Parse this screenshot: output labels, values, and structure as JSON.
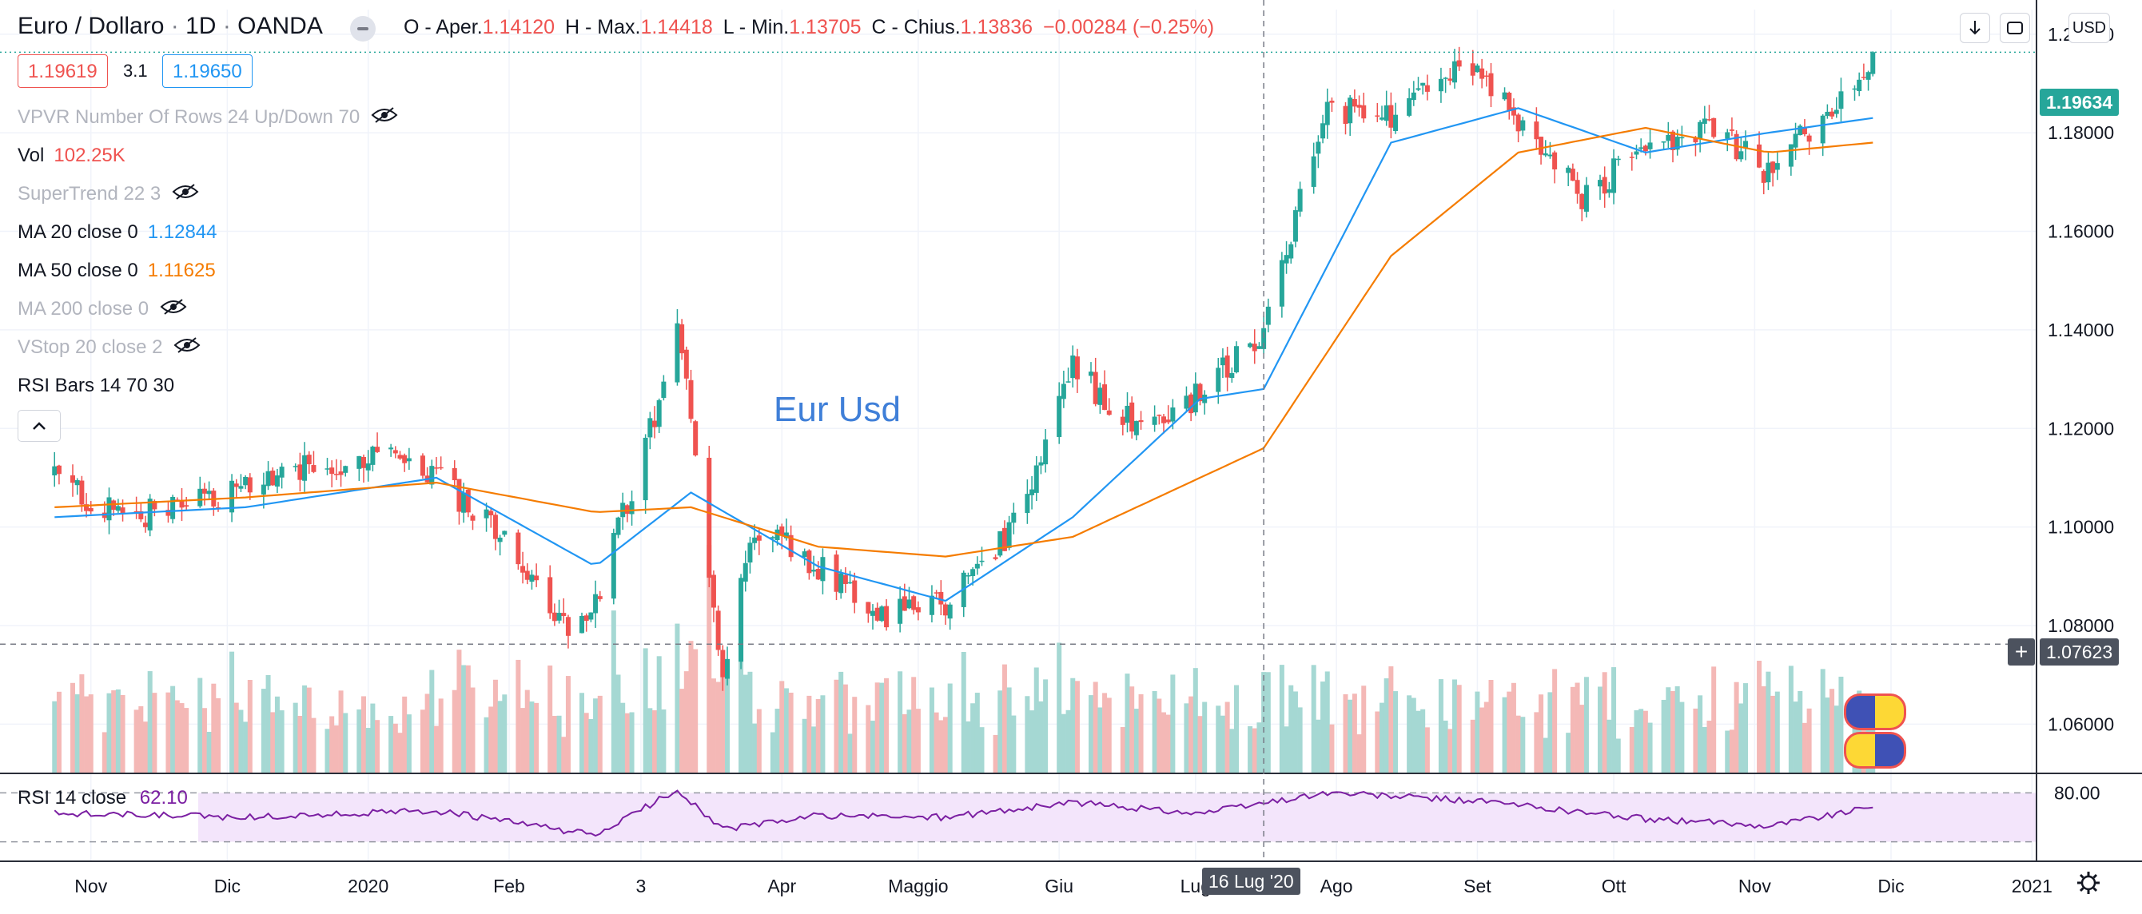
{
  "header": {
    "symbol": "Euro / Dollaro",
    "sep1": "·",
    "interval": "1D",
    "sep2": "·",
    "exchange": "OANDA",
    "ohlc": {
      "o_label": "O - Aper.",
      "o": "1.14120",
      "h_label": "H - Max.",
      "h": "1.14418",
      "l_label": "L - Min.",
      "l": "1.13705",
      "c_label": "C - Chius.",
      "c": "1.13836",
      "change": "−0.00284 (−0.25%)"
    },
    "bid": "1.19619",
    "spread": "3.1",
    "ask": "1.19650",
    "currency": "USD"
  },
  "indicators": [
    {
      "name": "VPVR Number Of Rows 24 Up/Down 70",
      "value": "",
      "hidden": true
    },
    {
      "name": "Vol",
      "value": "102.25K",
      "hidden": false,
      "color": "#ef5350"
    },
    {
      "name": "SuperTrend 22 3",
      "value": "",
      "hidden": true
    },
    {
      "name": "MA 20 close 0",
      "value": "1.12844",
      "hidden": false,
      "color": "#2196f3"
    },
    {
      "name": "MA 50 close 0",
      "value": "1.11625",
      "hidden": false,
      "color": "#f57c00"
    },
    {
      "name": "MA 200 close 0",
      "value": "",
      "hidden": true
    },
    {
      "name": "VStop 20 close 2",
      "value": "",
      "hidden": true
    },
    {
      "name": "RSI Bars 14 70 30",
      "value": "",
      "hidden": false
    }
  ],
  "annotation": "Eur Usd",
  "rsi_legend": {
    "name": "RSI 14 close",
    "value": "62.10"
  },
  "tags": {
    "last_price": "1.19634",
    "crosshair_price": "1.07623",
    "crosshair_date": "16 Lug '20",
    "rsi_level": "80.00"
  },
  "chart_data": {
    "type": "candlestick",
    "symbol": "EUR/USD",
    "interval": "1D",
    "ylim": [
      1.05,
      1.205
    ],
    "y_ticks": [
      1.06,
      1.08,
      1.1,
      1.12,
      1.14,
      1.16,
      1.18,
      1.2
    ],
    "x_ticks": [
      "Nov",
      "Dic",
      "2020",
      "Feb",
      "3",
      "Apr",
      "Maggio",
      "Giu",
      "Lug",
      "Ago",
      "Set",
      "Ott",
      "Nov",
      "Dic",
      "2021"
    ],
    "series": [
      {
        "name": "EUR/USD close (approx.)",
        "type": "candles",
        "x": [
          "2019-10-24",
          "2019-11-07",
          "2019-11-21",
          "2019-12-05",
          "2019-12-19",
          "2020-01-02",
          "2020-01-16",
          "2020-01-30",
          "2020-02-13",
          "2020-02-20",
          "2020-03-05",
          "2020-03-09",
          "2020-03-19",
          "2020-03-26",
          "2020-04-09",
          "2020-04-23",
          "2020-05-07",
          "2020-05-21",
          "2020-06-04",
          "2020-06-18",
          "2020-07-02",
          "2020-07-16",
          "2020-07-30",
          "2020-08-13",
          "2020-08-27",
          "2020-09-01",
          "2020-09-10",
          "2020-09-24",
          "2020-10-08",
          "2020-10-22",
          "2020-11-04",
          "2020-11-19",
          "2020-11-27"
        ],
        "close": [
          1.11,
          1.102,
          1.104,
          1.108,
          1.112,
          1.115,
          1.11,
          1.098,
          1.08,
          1.085,
          1.125,
          1.142,
          1.07,
          1.1,
          1.092,
          1.082,
          1.085,
          1.098,
          1.132,
          1.12,
          1.127,
          1.14,
          1.185,
          1.183,
          1.192,
          1.192,
          1.182,
          1.167,
          1.177,
          1.182,
          1.172,
          1.186,
          1.196
        ]
      },
      {
        "name": "MA 20",
        "color": "#2196f3",
        "x": [
          "2019-10-24",
          "2019-12-05",
          "2020-01-16",
          "2020-02-20",
          "2020-03-12",
          "2020-04-09",
          "2020-05-07",
          "2020-06-04",
          "2020-07-02",
          "2020-07-16",
          "2020-08-13",
          "2020-09-10",
          "2020-10-08",
          "2020-11-04",
          "2020-11-27"
        ],
        "values": [
          1.102,
          1.104,
          1.11,
          1.092,
          1.107,
          1.092,
          1.085,
          1.102,
          1.126,
          1.128,
          1.178,
          1.185,
          1.176,
          1.18,
          1.183
        ]
      },
      {
        "name": "MA 50",
        "color": "#f57c00",
        "x": [
          "2019-10-24",
          "2019-12-05",
          "2020-01-16",
          "2020-02-20",
          "2020-03-12",
          "2020-04-09",
          "2020-05-07",
          "2020-06-04",
          "2020-07-02",
          "2020-07-16",
          "2020-08-13",
          "2020-09-10",
          "2020-10-08",
          "2020-11-04",
          "2020-11-27"
        ],
        "values": [
          1.104,
          1.106,
          1.109,
          1.103,
          1.104,
          1.096,
          1.094,
          1.098,
          1.11,
          1.116,
          1.155,
          1.176,
          1.181,
          1.176,
          1.178
        ]
      },
      {
        "name": "RSI 14",
        "color": "#7b1fa2",
        "x": [
          "2019-10-24",
          "2019-12-05",
          "2020-01-16",
          "2020-02-20",
          "2020-03-09",
          "2020-03-19",
          "2020-04-09",
          "2020-05-07",
          "2020-06-04",
          "2020-07-02",
          "2020-07-30",
          "2020-09-01",
          "2020-10-08",
          "2020-11-04",
          "2020-11-27"
        ],
        "values": [
          55,
          50,
          58,
          28,
          84,
          35,
          52,
          50,
          68,
          55,
          80,
          70,
          48,
          40,
          62
        ]
      }
    ],
    "volume_note": "green/red volume histogram at bottom of price pane",
    "grid": true,
    "legend": "top-left"
  }
}
